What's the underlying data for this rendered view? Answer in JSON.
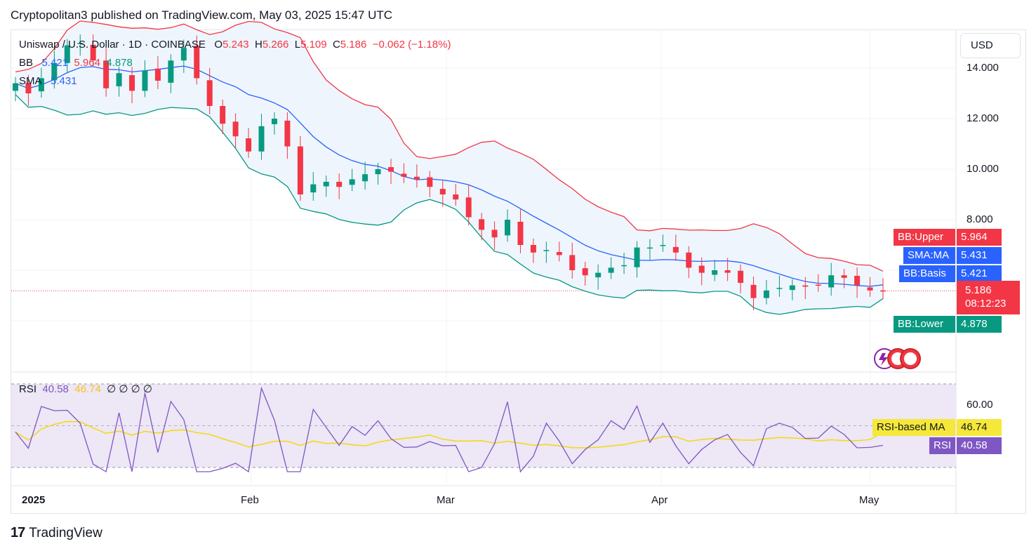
{
  "header": {
    "published_line": "Cryptopolitan3 published on TradingView.com, May 03, 2025 15:47 UTC"
  },
  "legend": {
    "symbol": "Uniswap / U.S. Dollar · 1D · COINBASE",
    "open_label": "O",
    "open": "5.243",
    "high_label": "H",
    "high": "5.266",
    "low_label": "L",
    "low": "5.109",
    "close_label": "C",
    "close": "5.186",
    "change": "−0.062 (−1.18%)",
    "bb_label": "BB",
    "bb_basis": "5.421",
    "bb_upper": "5.964",
    "bb_lower": "4.878",
    "sma_label": "SMA",
    "sma_value": "5.431",
    "rsi_label": "RSI",
    "rsi_value": "40.58",
    "rsi_ma": "46.74",
    "rsi_extra": "∅ ∅ ∅ ∅"
  },
  "currency_button": "USD",
  "price_axis": [
    "14.000",
    "12.000",
    "10.000",
    "8.000"
  ],
  "rsi_axis": [
    "60.00"
  ],
  "time_axis": [
    "2025",
    "Feb",
    "Mar",
    "Apr",
    "May"
  ],
  "tags": {
    "bb_upper": {
      "label": "BB:Upper",
      "value": "5.964"
    },
    "sma_ma": {
      "label": "SMA:MA",
      "value": "5.431"
    },
    "bb_basis": {
      "label": "BB:Basis",
      "value": "5.421"
    },
    "last_price": {
      "value": "5.186",
      "countdown": "08:12:23"
    },
    "bb_lower": {
      "label": "BB:Lower",
      "value": "4.878"
    },
    "rsi_ma": {
      "label": "RSI-based MA",
      "value": "46.74"
    },
    "rsi": {
      "label": "RSI",
      "value": "40.58"
    }
  },
  "footer": {
    "brand": "TradingView",
    "logo": "17"
  },
  "colors": {
    "up": "#089981",
    "down": "#f23645",
    "bb_upper": "#f23645",
    "bb_basis": "#2962ff",
    "bb_lower": "#089981",
    "bb_fill": "#eef5fc",
    "rsi": "#7e57c2",
    "rsi_ma": "#f5d90a",
    "rsi_band": "#ede7f6"
  },
  "chart_data": {
    "type": "candlestick",
    "x_labels": [
      "2025",
      "Feb",
      "Mar",
      "Apr",
      "May"
    ],
    "y_ticks": [
      8,
      10,
      12,
      14
    ],
    "candles_approx_close": [
      13.4,
      13.0,
      13.6,
      14.2,
      14.9,
      15.0,
      14.3,
      13.2,
      13.8,
      13.1,
      13.9,
      13.5,
      14.3,
      14.8,
      13.6,
      12.5,
      11.8,
      11.3,
      10.7,
      11.7,
      12.0,
      10.9,
      9.0,
      9.4,
      9.5,
      9.3,
      9.6,
      9.8,
      10.0,
      9.9,
      9.7,
      9.6,
      9.3,
      9.0,
      8.8,
      8.1,
      7.6,
      7.3,
      8.0,
      7.0,
      6.7,
      6.8,
      6.6,
      6.0,
      5.8,
      5.9,
      6.1,
      6.2,
      6.9,
      6.9,
      7.0,
      6.7,
      6.1,
      5.9,
      6.0,
      5.9,
      5.5,
      4.9,
      5.2,
      5.3,
      5.4,
      5.35,
      5.4,
      5.8,
      5.7,
      5.4,
      5.2,
      5.186
    ],
    "bollinger": {
      "upper_last": 5.964,
      "basis_last": 5.421,
      "lower_last": 4.878
    },
    "sma_last": 5.431,
    "last_price": 5.186,
    "rsi": {
      "last": 40.58,
      "ma_last": 46.74,
      "level_shown": 60
    }
  }
}
